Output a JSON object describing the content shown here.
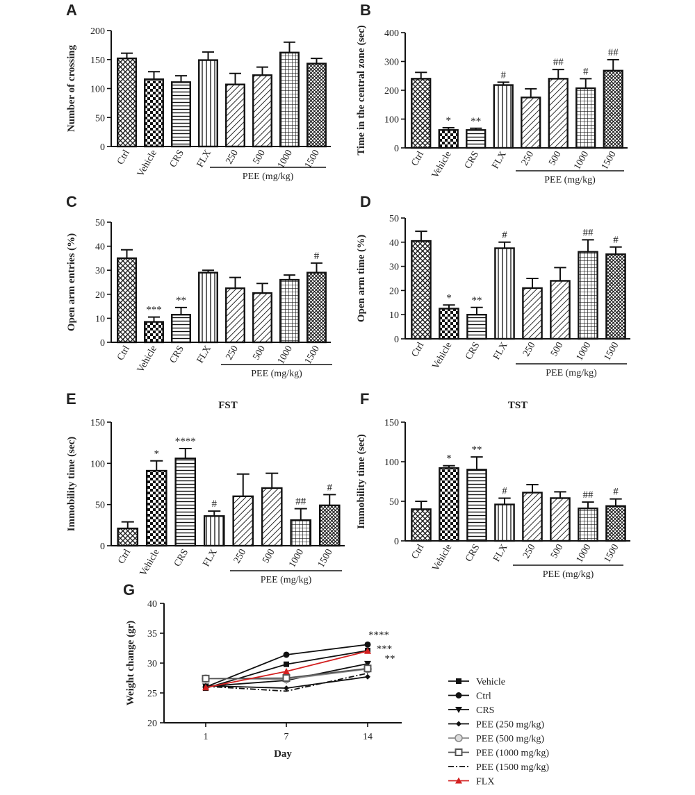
{
  "chart_data": [
    {
      "id": "A",
      "type": "bar",
      "title": "",
      "xlabel": "",
      "ylabel": "Number of crossing",
      "ylim": [
        0,
        200
      ],
      "yticks": [
        0,
        50,
        100,
        150,
        200
      ],
      "categories": [
        "Ctrl",
        "Vehicle",
        "CRS",
        "FLX",
        "250",
        "500",
        "1000",
        "1500"
      ],
      "values": [
        152,
        116,
        111,
        149,
        107,
        123,
        162,
        143
      ],
      "errors": [
        9,
        13,
        11,
        14,
        19,
        14,
        18,
        9
      ],
      "significance": [
        "",
        "",
        "",
        "",
        "",
        "",
        "",
        ""
      ],
      "group_label": "PEE (mg/kg)",
      "patterns": [
        "crosshatch",
        "check",
        "hstripe",
        "vstripe",
        "diag",
        "diag",
        "grid",
        "dots"
      ]
    },
    {
      "id": "B",
      "type": "bar",
      "title": "",
      "xlabel": "",
      "ylabel": "Time in the central zone (sec)",
      "ylim": [
        0,
        400
      ],
      "yticks": [
        0,
        100,
        200,
        300,
        400
      ],
      "categories": [
        "Ctrl",
        "Vehicle",
        "CRS",
        "FLX",
        "250",
        "500",
        "1000",
        "1500"
      ],
      "values": [
        240,
        62,
        62,
        218,
        175,
        240,
        207,
        268
      ],
      "errors": [
        22,
        8,
        6,
        10,
        30,
        32,
        33,
        38
      ],
      "significance": [
        "",
        "*",
        "**",
        "#",
        "",
        "##",
        "#",
        "##"
      ],
      "group_label": "PEE (mg/kg)",
      "patterns": [
        "crosshatch",
        "check",
        "hstripe",
        "vstripe",
        "diag",
        "diag",
        "grid",
        "dots"
      ]
    },
    {
      "id": "C",
      "type": "bar",
      "title": "",
      "xlabel": "",
      "ylabel": "Open arm entries (%)",
      "ylim": [
        0,
        50
      ],
      "yticks": [
        0,
        10,
        20,
        30,
        40,
        50
      ],
      "categories": [
        "Ctrl",
        "Vehicle",
        "CRS",
        "FLX",
        "250",
        "500",
        "1000",
        "1500"
      ],
      "values": [
        35,
        8.5,
        11.5,
        29,
        22.5,
        20.5,
        26,
        29
      ],
      "errors": [
        3.5,
        2,
        3,
        1,
        4.5,
        4,
        2,
        4
      ],
      "significance": [
        "",
        "***",
        "**",
        "",
        "",
        "",
        "",
        "#"
      ],
      "group_label": "PEE (mg/kg)",
      "patterns": [
        "crosshatch",
        "check",
        "hstripe",
        "vstripe",
        "diag",
        "diag",
        "grid",
        "dots"
      ]
    },
    {
      "id": "D",
      "type": "bar",
      "title": "",
      "xlabel": "",
      "ylabel": "Open arm time (%)",
      "ylim": [
        0,
        50
      ],
      "yticks": [
        0,
        10,
        20,
        30,
        40,
        50
      ],
      "categories": [
        "Ctrl",
        "Vehicle",
        "CRS",
        "FLX",
        "250",
        "500",
        "1000",
        "1500"
      ],
      "values": [
        40.5,
        12.5,
        10,
        37.5,
        21,
        24,
        36,
        35
      ],
      "errors": [
        4,
        1.5,
        3,
        2.5,
        4,
        5.5,
        5,
        3
      ],
      "significance": [
        "",
        "*",
        "**",
        "#",
        "",
        "",
        "##",
        "#"
      ],
      "group_label": "PEE (mg/kg)",
      "patterns": [
        "crosshatch",
        "check",
        "hstripe",
        "vstripe",
        "diag",
        "diag",
        "grid",
        "dots"
      ]
    },
    {
      "id": "E",
      "type": "bar",
      "title": "FST",
      "xlabel": "",
      "ylabel": "Immobility time (sec)",
      "ylim": [
        0,
        150
      ],
      "yticks": [
        0,
        50,
        100,
        150
      ],
      "categories": [
        "Ctrl",
        "Vehicle",
        "CRS",
        "FLX",
        "250",
        "500",
        "1000",
        "1500"
      ],
      "values": [
        21,
        91,
        106,
        36,
        60,
        70,
        31,
        49
      ],
      "errors": [
        8,
        12,
        12,
        6,
        27,
        18,
        14,
        13
      ],
      "significance": [
        "",
        "*",
        "****",
        "#",
        "",
        "",
        "##",
        "#"
      ],
      "group_label": "PEE (mg/kg)",
      "patterns": [
        "crosshatch",
        "check",
        "hstripe",
        "vstripe",
        "diag",
        "diag",
        "grid",
        "dots"
      ]
    },
    {
      "id": "F",
      "type": "bar",
      "title": "TST",
      "xlabel": "",
      "ylabel": "Immobility time (sec)",
      "ylim": [
        0,
        150
      ],
      "yticks": [
        0,
        50,
        100,
        150
      ],
      "categories": [
        "Ctrl",
        "Vehicle",
        "CRS",
        "FLX",
        "250",
        "500",
        "1000",
        "1500"
      ],
      "values": [
        40,
        92,
        90,
        46,
        61,
        54,
        41,
        44
      ],
      "errors": [
        10,
        3,
        16,
        8,
        10,
        8,
        8,
        9
      ],
      "significance": [
        "",
        "*",
        "**",
        "#",
        "",
        "",
        "##",
        "#"
      ],
      "group_label": "PEE (mg/kg)",
      "patterns": [
        "crosshatch",
        "check",
        "hstripe",
        "vstripe",
        "diag",
        "diag",
        "grid",
        "dots"
      ]
    },
    {
      "id": "G",
      "type": "line",
      "title": "",
      "xlabel": "Day",
      "ylabel": "Weight change (gr)",
      "ylim": [
        20,
        40
      ],
      "yticks": [
        20,
        25,
        30,
        35,
        40
      ],
      "x": [
        1,
        7,
        14
      ],
      "xticks": [
        "1",
        "7",
        "14"
      ],
      "series": [
        {
          "name": "Vehicle",
          "values": [
            25.8,
            29.8,
            32.1
          ],
          "marker": "square",
          "color": "#111111",
          "dash": ""
        },
        {
          "name": "Ctrl",
          "values": [
            26.0,
            31.4,
            33.1
          ],
          "marker": "circle",
          "color": "#111111",
          "dash": ""
        },
        {
          "name": "CRS",
          "values": [
            26.1,
            27.1,
            29.9
          ],
          "marker": "tri-down",
          "color": "#111111",
          "dash": ""
        },
        {
          "name": "PEE (250 mg/kg)",
          "values": [
            26.2,
            25.8,
            27.7
          ],
          "marker": "diamond",
          "color": "#111111",
          "dash": ""
        },
        {
          "name": "PEE (500 mg/kg)",
          "values": [
            27.4,
            27.3,
            29.0
          ],
          "marker": "circle-open",
          "color": "#8a8a8a",
          "dash": ""
        },
        {
          "name": "PEE (1000 mg/kg)",
          "values": [
            27.4,
            27.5,
            29.1
          ],
          "marker": "square-open",
          "color": "#555555",
          "dash": ""
        },
        {
          "name": "PEE (1500 mg/kg)",
          "values": [
            26.1,
            25.3,
            28.3
          ],
          "marker": "none",
          "color": "#111111",
          "dash": "8,3,2,3"
        },
        {
          "name": "FLX",
          "values": [
            25.9,
            28.6,
            32.0
          ],
          "marker": "triangle",
          "color": "#d32020",
          "dash": ""
        }
      ],
      "annotations": [
        "****",
        "***",
        "**"
      ],
      "legend": "right"
    }
  ]
}
